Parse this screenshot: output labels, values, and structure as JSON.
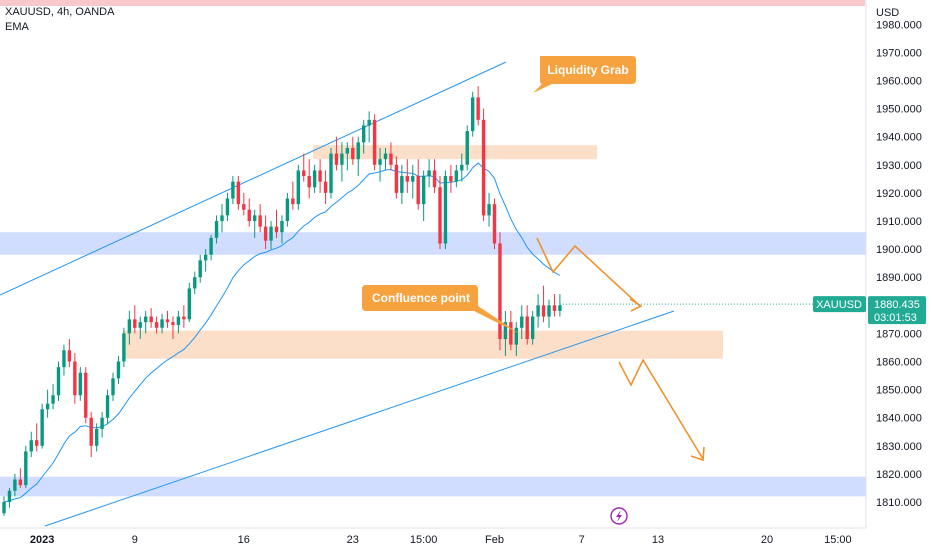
{
  "header": {
    "symbol_line": "XAUUSD, 4h, OANDA",
    "indicator": "EMA",
    "currency": "USD"
  },
  "price_label": {
    "symbol": "XAUUSD",
    "price": "1880.435",
    "countdown": "03:01:53"
  },
  "chart_data": {
    "type": "candlestick",
    "symbol": "XAUUSD",
    "timeframe": "4h",
    "broker": "OANDA",
    "y_ticks": [
      1810,
      1820,
      1830,
      1840,
      1850,
      1860,
      1870,
      1880,
      1890,
      1900,
      1910,
      1920,
      1930,
      1940,
      1950,
      1960,
      1970,
      1980
    ],
    "y_tick_labels": [
      "1810.000",
      "1820.000",
      "1830.000",
      "1840.000",
      "1850.000",
      "1860.000",
      "1870.000",
      "1880.000",
      "1890.000",
      "1900.000",
      "1910.000",
      "1920.000",
      "1930.000",
      "1940.000",
      "1950.000",
      "1960.000",
      "1970.000",
      "1980.000"
    ],
    "ylim": [
      1803,
      1986
    ],
    "x_ticks": [
      {
        "label": "2023",
        "bar": 7,
        "bold": true
      },
      {
        "label": "9",
        "bar": 24
      },
      {
        "label": "16",
        "bar": 44
      },
      {
        "label": "23",
        "bar": 64
      },
      {
        "label": "15:00",
        "bar": 77
      },
      {
        "label": "Feb",
        "bar": 90
      },
      {
        "label": "7",
        "bar": 106
      },
      {
        "label": "13",
        "bar": 120
      },
      {
        "label": "20",
        "bar": 140
      },
      {
        "label": "15:00",
        "bar": 153
      }
    ],
    "candles": [
      [
        1806,
        1812,
        1805,
        1810
      ],
      [
        1810,
        1815,
        1808,
        1814
      ],
      [
        1814,
        1820,
        1812,
        1818
      ],
      [
        1818,
        1822,
        1815,
        1816
      ],
      [
        1816,
        1830,
        1815,
        1828
      ],
      [
        1828,
        1835,
        1826,
        1832
      ],
      [
        1832,
        1838,
        1828,
        1830
      ],
      [
        1830,
        1845,
        1829,
        1843
      ],
      [
        1843,
        1850,
        1840,
        1845
      ],
      [
        1845,
        1852,
        1843,
        1848
      ],
      [
        1848,
        1860,
        1846,
        1858
      ],
      [
        1858,
        1866,
        1855,
        1864
      ],
      [
        1864,
        1868,
        1858,
        1860
      ],
      [
        1860,
        1863,
        1845,
        1848
      ],
      [
        1848,
        1858,
        1846,
        1856
      ],
      [
        1856,
        1858,
        1838,
        1840
      ],
      [
        1840,
        1842,
        1826,
        1830
      ],
      [
        1830,
        1838,
        1828,
        1836
      ],
      [
        1836,
        1842,
        1833,
        1840
      ],
      [
        1840,
        1850,
        1838,
        1848
      ],
      [
        1848,
        1856,
        1846,
        1854
      ],
      [
        1854,
        1862,
        1852,
        1860
      ],
      [
        1860,
        1872,
        1858,
        1870
      ],
      [
        1870,
        1878,
        1866,
        1875
      ],
      [
        1875,
        1880,
        1870,
        1872
      ],
      [
        1872,
        1876,
        1868,
        1874
      ],
      [
        1874,
        1878,
        1870,
        1876
      ],
      [
        1876,
        1879,
        1872,
        1874
      ],
      [
        1874,
        1876,
        1870,
        1872
      ],
      [
        1872,
        1877,
        1870,
        1875
      ],
      [
        1875,
        1878,
        1872,
        1874
      ],
      [
        1874,
        1876,
        1868,
        1873
      ],
      [
        1873,
        1878,
        1870,
        1876
      ],
      [
        1876,
        1880,
        1872,
        1875
      ],
      [
        1875,
        1888,
        1874,
        1886
      ],
      [
        1886,
        1892,
        1884,
        1890
      ],
      [
        1890,
        1898,
        1888,
        1896
      ],
      [
        1896,
        1900,
        1892,
        1898
      ],
      [
        1898,
        1905,
        1896,
        1904
      ],
      [
        1904,
        1912,
        1902,
        1910
      ],
      [
        1910,
        1916,
        1906,
        1912
      ],
      [
        1912,
        1920,
        1910,
        1918
      ],
      [
        1918,
        1926,
        1916,
        1924
      ],
      [
        1924,
        1926,
        1914,
        1916
      ],
      [
        1916,
        1920,
        1912,
        1914
      ],
      [
        1914,
        1918,
        1908,
        1910
      ],
      [
        1910,
        1914,
        1904,
        1912
      ],
      [
        1912,
        1916,
        1906,
        1908
      ],
      [
        1908,
        1912,
        1900,
        1903
      ],
      [
        1903,
        1910,
        1900,
        1908
      ],
      [
        1908,
        1914,
        1904,
        1906
      ],
      [
        1906,
        1912,
        1902,
        1910
      ],
      [
        1910,
        1920,
        1908,
        1918
      ],
      [
        1918,
        1924,
        1914,
        1916
      ],
      [
        1916,
        1930,
        1914,
        1928
      ],
      [
        1928,
        1934,
        1924,
        1926
      ],
      [
        1926,
        1932,
        1918,
        1922
      ],
      [
        1922,
        1930,
        1920,
        1928
      ],
      [
        1928,
        1932,
        1920,
        1924
      ],
      [
        1924,
        1928,
        1916,
        1920
      ],
      [
        1920,
        1936,
        1918,
        1934
      ],
      [
        1934,
        1940,
        1928,
        1930
      ],
      [
        1930,
        1938,
        1924,
        1934
      ],
      [
        1934,
        1938,
        1928,
        1936
      ],
      [
        1936,
        1940,
        1930,
        1932
      ],
      [
        1932,
        1940,
        1926,
        1938
      ],
      [
        1938,
        1946,
        1934,
        1944
      ],
      [
        1944,
        1949,
        1938,
        1946
      ],
      [
        1946,
        1948,
        1928,
        1930
      ],
      [
        1930,
        1936,
        1924,
        1932
      ],
      [
        1932,
        1936,
        1928,
        1934
      ],
      [
        1934,
        1938,
        1928,
        1930
      ],
      [
        1930,
        1933,
        1918,
        1920
      ],
      [
        1920,
        1930,
        1916,
        1926
      ],
      [
        1926,
        1932,
        1920,
        1924
      ],
      [
        1924,
        1930,
        1918,
        1926
      ],
      [
        1926,
        1932,
        1914,
        1916
      ],
      [
        1916,
        1928,
        1910,
        1926
      ],
      [
        1926,
        1932,
        1922,
        1928
      ],
      [
        1928,
        1932,
        1920,
        1922
      ],
      [
        1922,
        1926,
        1900,
        1902
      ],
      [
        1902,
        1928,
        1900,
        1926
      ],
      [
        1926,
        1930,
        1920,
        1924
      ],
      [
        1924,
        1930,
        1922,
        1928
      ],
      [
        1928,
        1934,
        1924,
        1930
      ],
      [
        1930,
        1944,
        1928,
        1942
      ],
      [
        1942,
        1956,
        1940,
        1954
      ],
      [
        1954,
        1958,
        1944,
        1946
      ],
      [
        1946,
        1950,
        1910,
        1912
      ],
      [
        1912,
        1920,
        1908,
        1916
      ],
      [
        1916,
        1918,
        1900,
        1902
      ],
      [
        1902,
        1906,
        1864,
        1868
      ],
      [
        1868,
        1878,
        1862,
        1874
      ],
      [
        1874,
        1878,
        1864,
        1866
      ],
      [
        1866,
        1874,
        1862,
        1872
      ],
      [
        1872,
        1880,
        1868,
        1876
      ],
      [
        1876,
        1880,
        1866,
        1868
      ],
      [
        1868,
        1878,
        1866,
        1876
      ],
      [
        1876,
        1884,
        1872,
        1880
      ],
      [
        1880,
        1887,
        1874,
        1876
      ],
      [
        1876,
        1882,
        1872,
        1880
      ],
      [
        1880,
        1884,
        1876,
        1878
      ],
      [
        1878,
        1884,
        1876,
        1880
      ]
    ],
    "ema_visible": true,
    "zones": [
      {
        "type": "resistance",
        "color": "blue",
        "from": 1898,
        "to": 1906
      },
      {
        "type": "supply",
        "color": "orange",
        "from": 1932,
        "to": 1937
      },
      {
        "type": "demand",
        "color": "orange",
        "from": 1861,
        "to": 1871
      },
      {
        "type": "support",
        "color": "blue",
        "from": 1812,
        "to": 1819
      }
    ],
    "annotations": [
      "Liquidity Grab",
      "Confluence point"
    ],
    "last_price": 1880.435,
    "colors": {
      "up": "#089981",
      "down": "#f23645",
      "ema": "#2196f3",
      "trendline": "#2196f3",
      "arrow": "#f0922b",
      "callout": "#f6a23f"
    }
  }
}
